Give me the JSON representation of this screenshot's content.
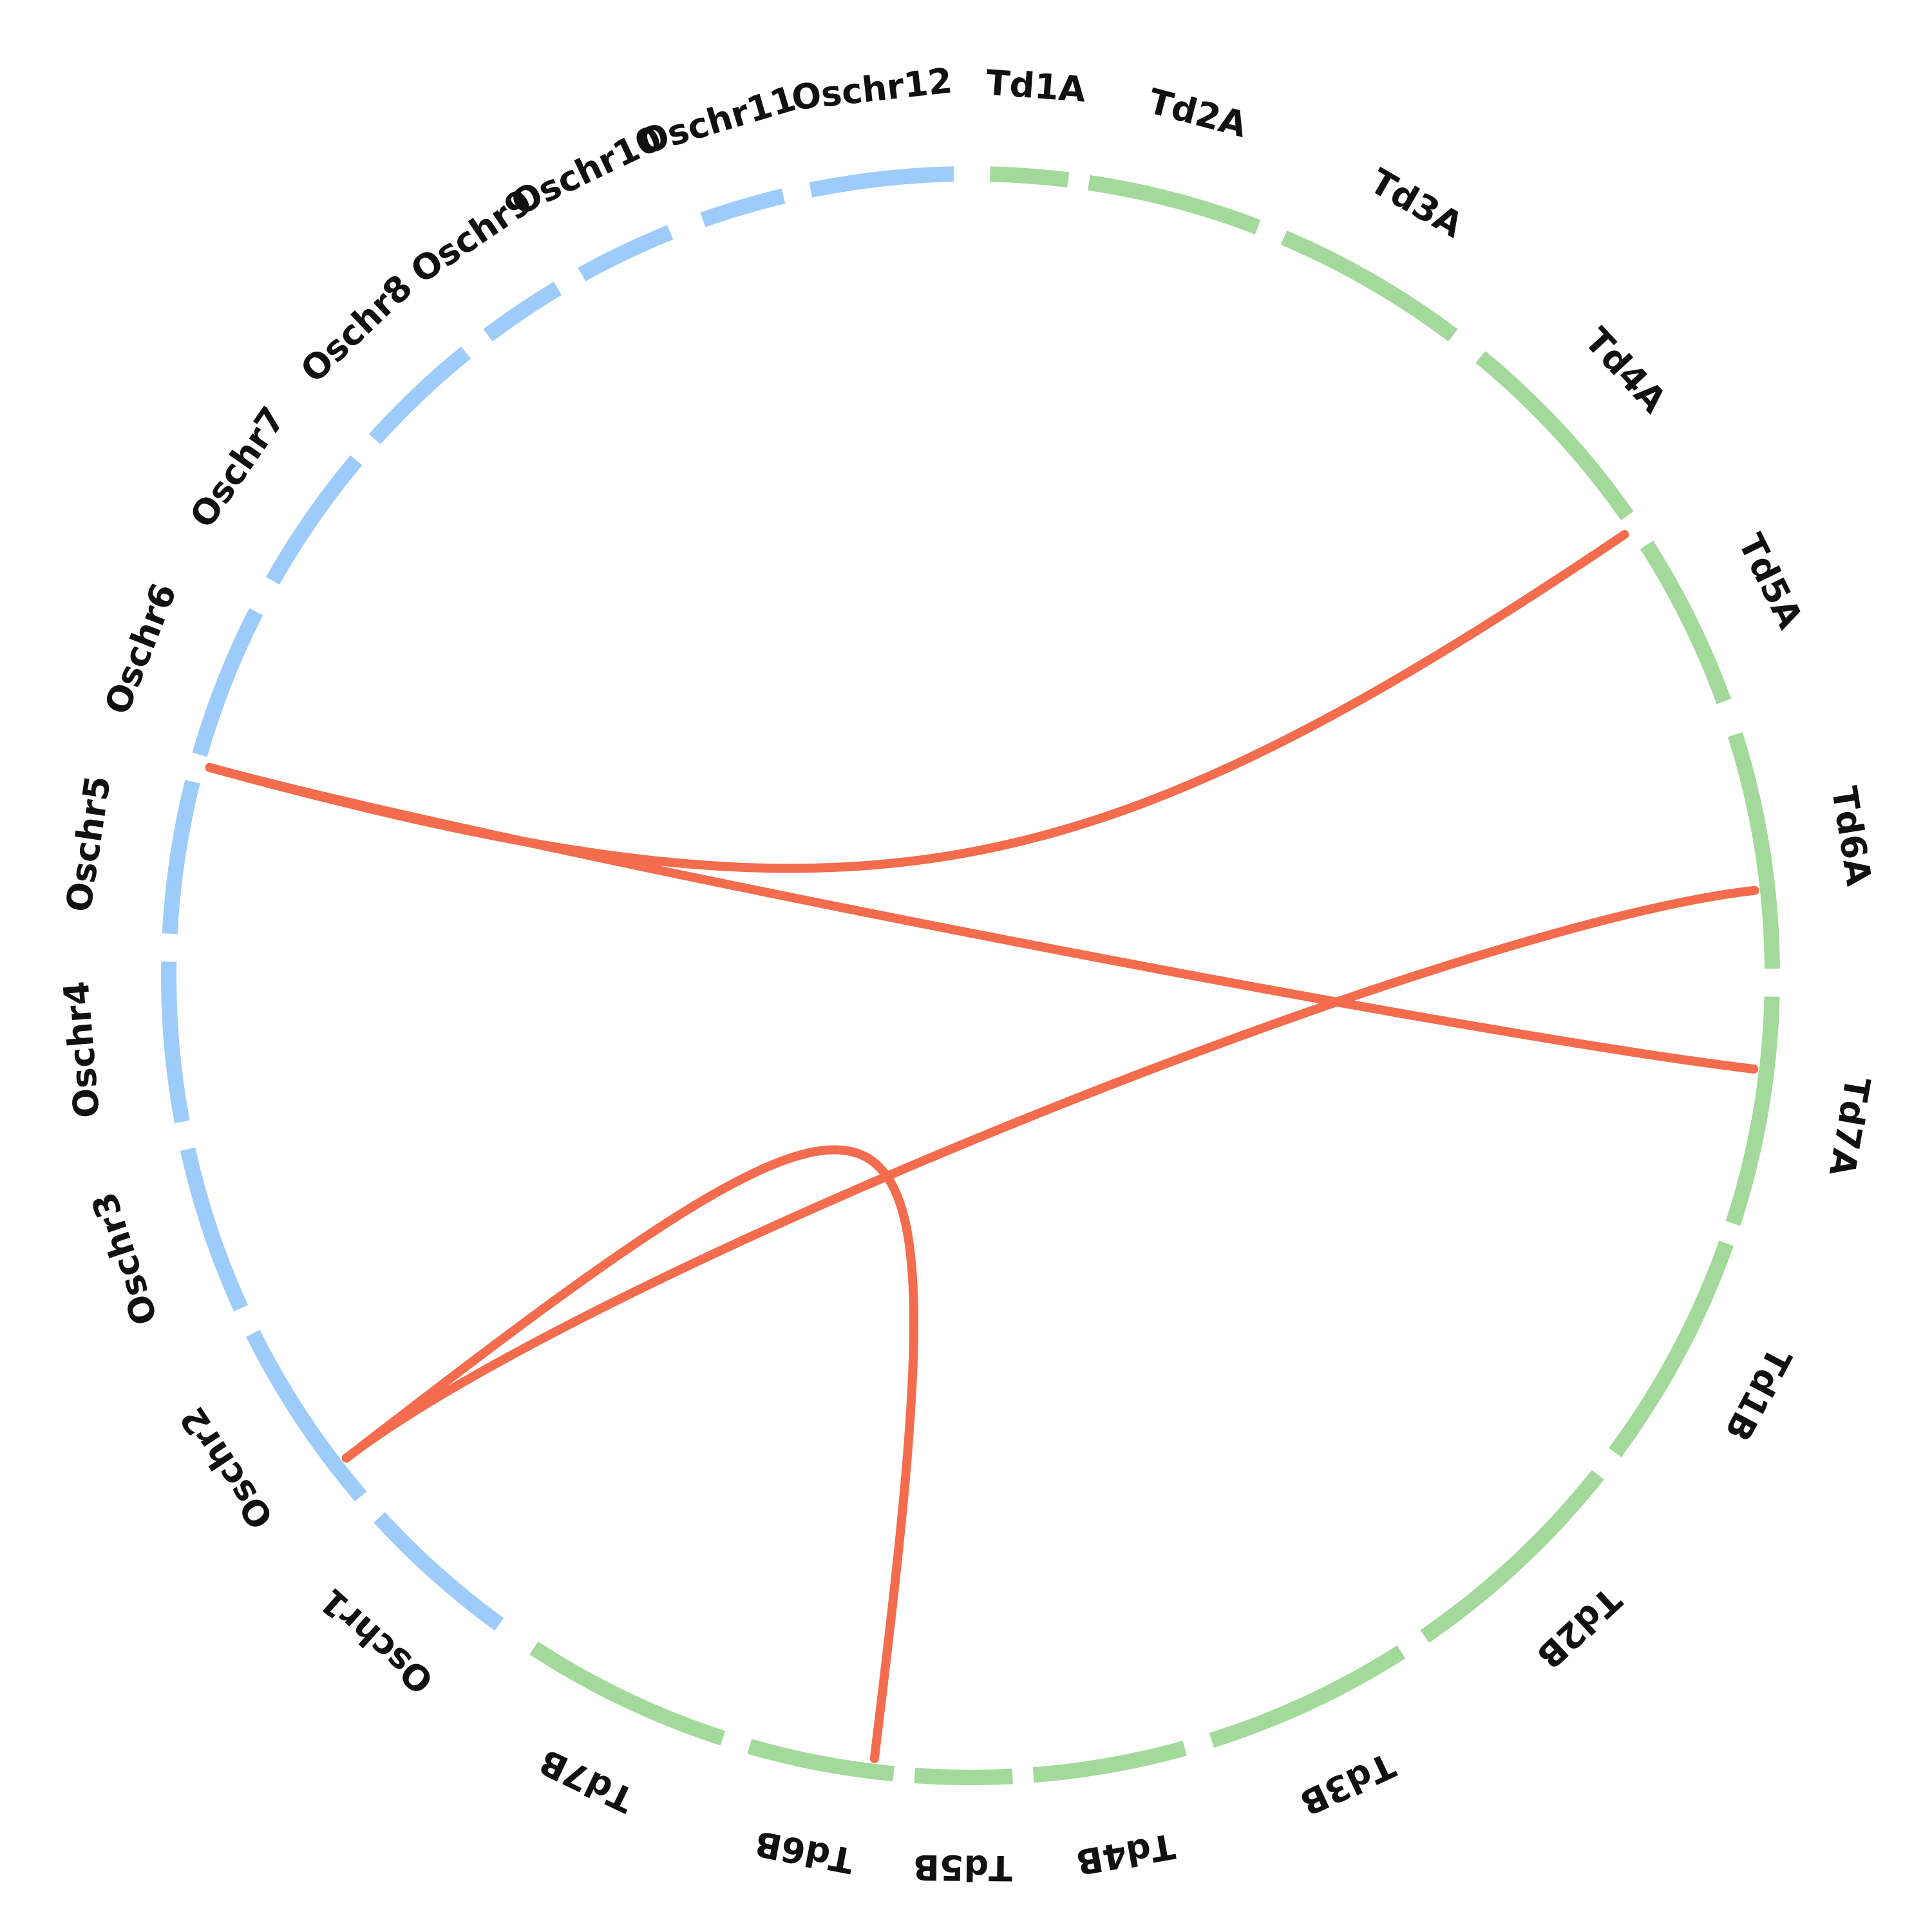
{
  "colors": {
    "rice_chromosome": "#9dcbfa",
    "wheat_chromosome": "#a3d99b",
    "link": "#f36c4d",
    "label": "#111111",
    "background": "#ffffff"
  },
  "chromosomes": [
    {
      "id": "Td1A",
      "label": "Td1A",
      "group": "wheat"
    },
    {
      "id": "Td2A",
      "label": "Td2A",
      "group": "wheat"
    },
    {
      "id": "Td3A",
      "label": "Td3A",
      "group": "wheat"
    },
    {
      "id": "Td4A",
      "label": "Td4A",
      "group": "wheat"
    },
    {
      "id": "Td5A",
      "label": "Td5A",
      "group": "wheat"
    },
    {
      "id": "Td6A",
      "label": "Td6A",
      "group": "wheat"
    },
    {
      "id": "Td7A",
      "label": "Td7A",
      "group": "wheat"
    },
    {
      "id": "Td1B",
      "label": "Td1B",
      "group": "wheat"
    },
    {
      "id": "Td2B",
      "label": "Td2B",
      "group": "wheat"
    },
    {
      "id": "Td3B",
      "label": "Td3B",
      "group": "wheat"
    },
    {
      "id": "Td4B",
      "label": "Td4B",
      "group": "wheat"
    },
    {
      "id": "Td5B",
      "label": "Td5B",
      "group": "wheat"
    },
    {
      "id": "Td6B",
      "label": "Td6B",
      "group": "wheat"
    },
    {
      "id": "Td7B",
      "label": "Td7B",
      "group": "wheat"
    },
    {
      "id": "Oschr1",
      "label": "Oschr1",
      "group": "rice"
    },
    {
      "id": "Oschr2",
      "label": "Oschr2",
      "group": "rice"
    },
    {
      "id": "Oschr3",
      "label": "Oschr3",
      "group": "rice"
    },
    {
      "id": "Oschr4",
      "label": "Oschr4",
      "group": "rice"
    },
    {
      "id": "Oschr5",
      "label": "Oschr5",
      "group": "rice"
    },
    {
      "id": "Oschr6",
      "label": "Oschr6",
      "group": "rice"
    },
    {
      "id": "Oschr7",
      "label": "Oschr7",
      "group": "rice"
    },
    {
      "id": "Oschr8",
      "label": "Oschr8",
      "group": "rice"
    },
    {
      "id": "Oschr9",
      "label": "Oschr9",
      "group": "rice"
    },
    {
      "id": "Oschr10",
      "label": "Oschr10",
      "group": "rice"
    },
    {
      "id": "Oschr11",
      "label": "Oschr11",
      "group": "rice"
    },
    {
      "id": "Oschr12",
      "label": "Oschr12",
      "group": "rice"
    }
  ],
  "links": [
    {
      "from": "Oschr6",
      "to": "Td4A"
    },
    {
      "from": "Oschr6",
      "to": "Td7A"
    },
    {
      "from": "Oschr2",
      "to": "Td6A"
    },
    {
      "from": "Oschr2",
      "to": "Td6B"
    }
  ]
}
